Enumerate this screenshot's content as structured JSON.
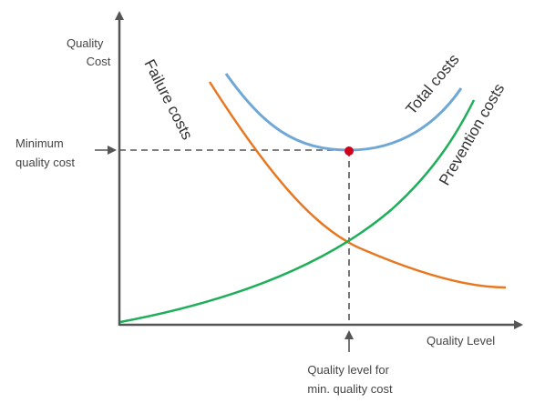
{
  "y_axis": {
    "label_line1": "Quality",
    "label_line2": "Cost"
  },
  "x_axis": {
    "label": "Quality Level"
  },
  "y_marker": {
    "label_line1": "Minimum",
    "label_line2": "quality cost"
  },
  "x_marker": {
    "label_line1": "Quality level for",
    "label_line2": "min. quality cost"
  },
  "curves": {
    "failure": {
      "label": "Failure costs",
      "color": "#E87722"
    },
    "total": {
      "label": "Total costs",
      "color": "#6FA8D6"
    },
    "prevention": {
      "label": "Prevention costs",
      "color": "#1FAE5A"
    }
  },
  "optimum_point": {
    "color": "#D0021B"
  },
  "axis_color": "#555555",
  "guide_color": "#555555"
}
